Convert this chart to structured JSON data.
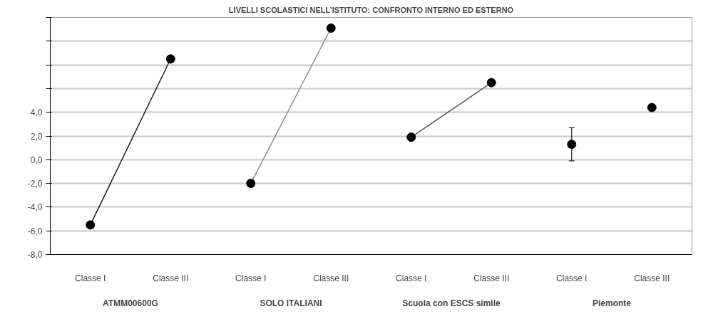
{
  "chart_data": {
    "type": "line",
    "title": "LIVELLI SCOLASTICI NELL’ISTITUTO: CONFRONTO INTERNO ED ESTERNO",
    "categories": [
      "Classe I",
      "Classe III",
      "Classe I",
      "Classe III",
      "Classe I",
      "Classe III",
      "Classe I",
      "Classe III"
    ],
    "annotations": [
      "ATMM00600G",
      "SOLO ITALIANI",
      "Scuola con ESCS simile",
      "Piemonte"
    ],
    "series": [
      {
        "color": "#1a1a1a",
        "values": [
          -5.5,
          8.5,
          null,
          null,
          null,
          null,
          null,
          null
        ]
      },
      {
        "color": "#8c8c8c",
        "values": [
          null,
          null,
          -2.0,
          11.1,
          null,
          null,
          null,
          null
        ]
      },
      {
        "color": "#505050",
        "values": [
          null,
          null,
          null,
          null,
          1.9,
          6.5,
          null,
          null
        ]
      },
      {
        "type": "scatter",
        "color": "#000000",
        "values": [
          null,
          null,
          null,
          null,
          null,
          null,
          1.3,
          4.4
        ],
        "errors": [
          null,
          null,
          null,
          null,
          null,
          null,
          [
            -0.1,
            2.7
          ],
          null
        ]
      }
    ],
    "ylim": [
      -8,
      12
    ],
    "yticks": [
      {
        "value": -8,
        "label": "-8,0"
      },
      {
        "value": -6,
        "label": "-6,0"
      },
      {
        "value": -4,
        "label": "-4,0"
      },
      {
        "value": -2,
        "label": "-2,0"
      },
      {
        "value": 0,
        "label": "0,0"
      },
      {
        "value": 2,
        "label": "2,0"
      },
      {
        "value": 4,
        "label": "4,0"
      },
      {
        "value": 6,
        "label": null
      },
      {
        "value": 8,
        "label": null
      },
      {
        "value": 10,
        "label": null
      },
      {
        "value": 12,
        "label": null
      }
    ],
    "grid": "y",
    "marker": "circle"
  }
}
